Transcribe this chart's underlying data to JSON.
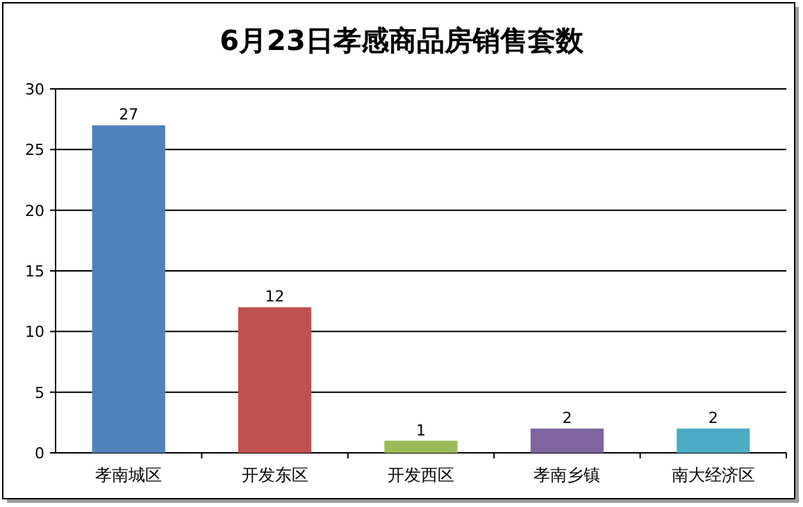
{
  "chart_data": {
    "type": "bar",
    "title": "6月23日孝感商品房销售套数",
    "categories": [
      "孝南城区",
      "开发东区",
      "开发西区",
      "孝南乡镇",
      "南大经济区"
    ],
    "values": [
      27,
      12,
      1,
      2,
      2
    ],
    "colors": [
      "#4f81bd",
      "#c0504d",
      "#9bbb59",
      "#8064a2",
      "#4bacc6"
    ],
    "ylim": [
      0,
      30
    ],
    "yticks": [
      0,
      5,
      10,
      15,
      20,
      25,
      30
    ],
    "grid": "y",
    "data_labels": true
  }
}
